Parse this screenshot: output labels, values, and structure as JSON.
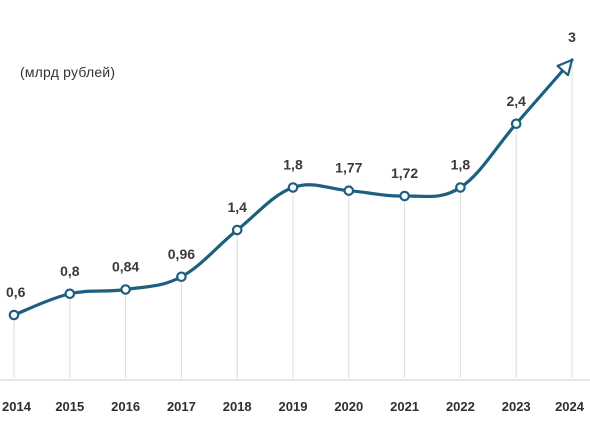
{
  "chart_data": {
    "type": "line",
    "title": "",
    "unit_label": "(млрд рублей)",
    "x": [
      "2014",
      "2015",
      "2016",
      "2017",
      "2018",
      "2019",
      "2020",
      "2021",
      "2022",
      "2023",
      "2024"
    ],
    "y": [
      0.6,
      0.8,
      0.84,
      0.96,
      1.4,
      1.8,
      1.77,
      1.72,
      1.8,
      2.4,
      3
    ],
    "data_labels": [
      "0,6",
      "0,8",
      "0,84",
      "0,96",
      "1,4",
      "1,8",
      "1,77",
      "1,72",
      "1,8",
      "2,4",
      "3"
    ],
    "ylim": [
      0,
      3
    ],
    "vertical_gridlines": true,
    "horizontal_gridlines": false,
    "smooth": true,
    "end_marker": "arrow",
    "colors": {
      "line": "#1d5f7f",
      "marker_fill": "#ffffff",
      "gridline": "#dcdcdc",
      "axis": "#cfcfcf"
    }
  }
}
